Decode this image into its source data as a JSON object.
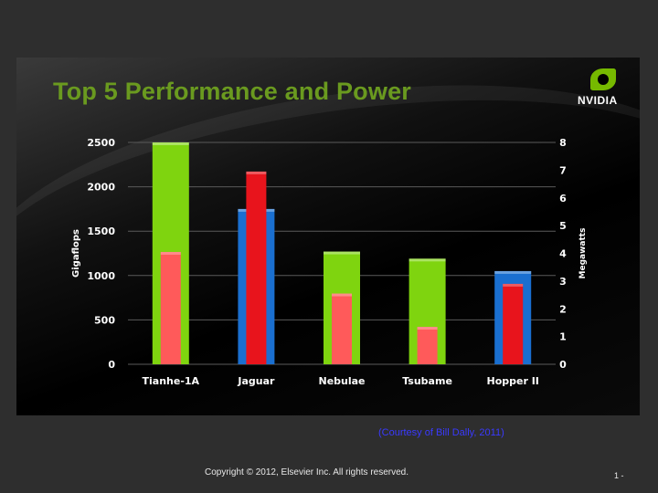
{
  "slide": {
    "title": "Top 5 Performance and Power",
    "logo_text": "NVIDIA",
    "courtesy": "(Courtesy of Bill Dally, 2011)",
    "footer": "Copyright © 2012, Elsevier Inc. All rights reserved.",
    "page": "1 -"
  },
  "colors": {
    "background": "#000000",
    "title": "#6a9a1f",
    "gigaflops_green": "#7fd40f",
    "gigaflops_blue": "#1a6fd0",
    "power_red": "#e8141c",
    "power_pink": "#ff5a5a",
    "courtesy": "#3a3aff"
  },
  "chart_data": {
    "type": "bar",
    "categories": [
      "Tianhe-1A",
      "Jaguar",
      "Nebulae",
      "Tsubame",
      "Hopper II"
    ],
    "ylabel": "Gigaflops",
    "y2label": "Megawatts",
    "ylim": [
      0,
      2500
    ],
    "y2lim": [
      0,
      8
    ],
    "yticks": [
      "0",
      "500",
      "1000",
      "1500",
      "2000",
      "2500"
    ],
    "y2ticks": [
      "0",
      "1",
      "2",
      "3",
      "4",
      "5",
      "6",
      "7",
      "8"
    ],
    "grid": true,
    "series": [
      {
        "axis": "left",
        "values": [
          2500,
          1750,
          1270,
          1190,
          1050
        ],
        "colors": [
          "#7fd40f",
          "#1a6fd0",
          "#7fd40f",
          "#7fd40f",
          "#1a6fd0"
        ]
      },
      {
        "axis": "right",
        "values": [
          4.05,
          6.95,
          2.55,
          1.35,
          2.9
        ],
        "colors": [
          "#ff5a5a",
          "#e8141c",
          "#ff5a5a",
          "#ff5a5a",
          "#e8141c"
        ]
      }
    ]
  }
}
